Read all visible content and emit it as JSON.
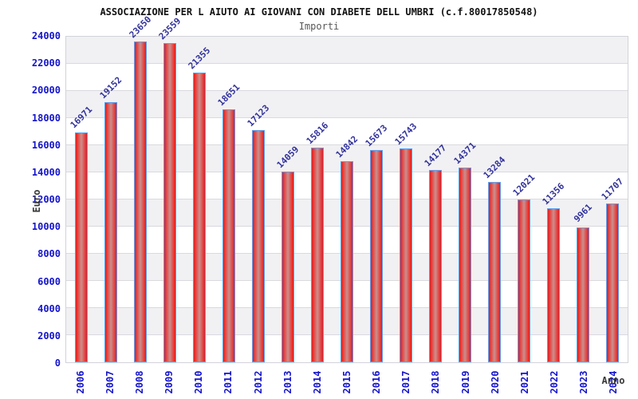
{
  "chart_data": {
    "type": "bar",
    "title": "ASSOCIAZIONE PER L AIUTO AI GIOVANI CON DIABETE DELL UMBRI (c.f.80017850548)",
    "subtitle": "Importi",
    "xlabel": "Anno",
    "ylabel": "Euro",
    "categories": [
      "2006",
      "2007",
      "2008",
      "2009",
      "2010",
      "2011",
      "2012",
      "2013",
      "2014",
      "2015",
      "2016",
      "2017",
      "2018",
      "2019",
      "2020",
      "2021",
      "2022",
      "2023",
      "2024"
    ],
    "values": [
      16971,
      19152,
      23650,
      23559,
      21355,
      18651,
      17123,
      14059,
      15816,
      14842,
      15673,
      15743,
      14177,
      14371,
      13284,
      12021,
      11356,
      9961,
      11707
    ],
    "ylim": [
      0,
      24000
    ],
    "ytick_step": 2000,
    "grid": "horizontal-bands",
    "legend": "none",
    "colors": {
      "bar_edge": "#5aa0f2",
      "bar_fill_edge": "#df1d22",
      "bar_fill_center": "#c9918f",
      "axis_tick_label": "#1414cc",
      "value_label": "#32329b",
      "band_gray": "#f1f1f4",
      "grid_line": "#d9d9df",
      "axis_title": "#383838",
      "title": "#111111",
      "subtitle": "#585858"
    }
  }
}
